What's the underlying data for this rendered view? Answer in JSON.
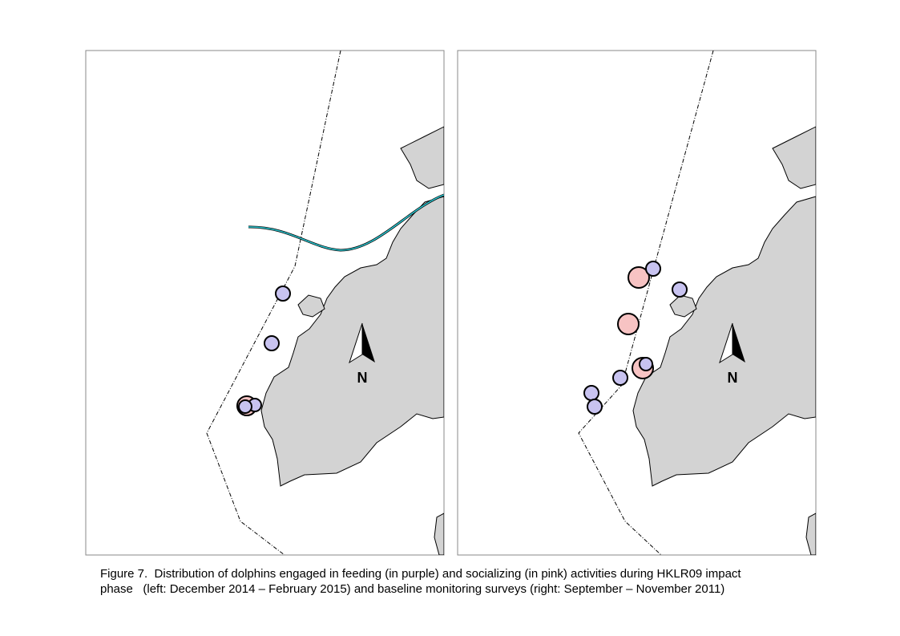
{
  "panels": [
    {
      "north_label": "N"
    },
    {
      "north_label": "N"
    }
  ],
  "caption": {
    "line1": "Figure 7.  Distribution of dolphins engaged in feeding (in purple) and socializing (in pink) activities during HKLR09 impact",
    "line2": "phase   (left: December 2014 – February 2015) and baseline monitoring surveys (right: September – November 2011)"
  }
}
